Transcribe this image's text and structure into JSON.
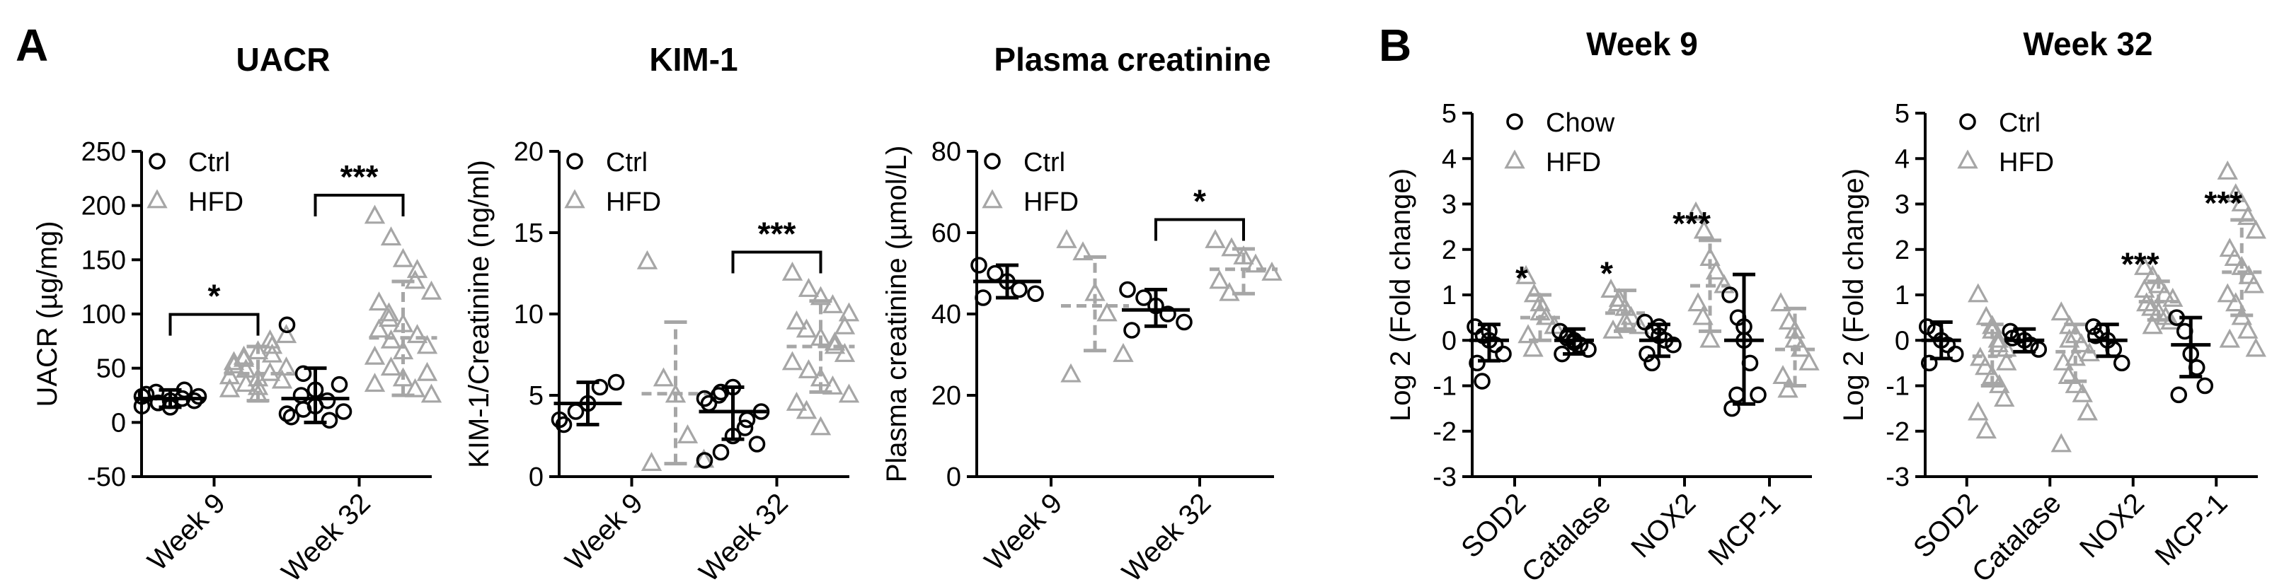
{
  "panel_labels": [
    "A",
    "B"
  ],
  "colors": {
    "ctrl": "#000000",
    "hfd": "#a6a6a6"
  },
  "chart_data": [
    {
      "type": "scatter",
      "title": "UACR",
      "ylabel": "UACR (µg/mg)",
      "ylim": [
        -50,
        250
      ],
      "yticks": [
        "-50",
        "0",
        "50",
        "100",
        "150",
        "200",
        "250"
      ],
      "categories": [
        "Week 9",
        "Week 32"
      ],
      "legend": {
        "position": "top-left",
        "entries": [
          "Ctrl",
          "HFD"
        ]
      },
      "series": [
        {
          "name": "Ctrl",
          "marker": "circle",
          "color": "#000000",
          "groups": [
            {
              "category": "Week 9",
              "mean": 22,
              "sd_low": 14,
              "sd_high": 30,
              "points": [
                15,
                18,
                20,
                22,
                24,
                26,
                28,
                14,
                30,
                20,
                24,
                18
              ]
            },
            {
              "category": "Week 32",
              "mean": 22,
              "sd_low": 0,
              "sd_high": 50,
              "points": [
                90,
                45,
                30,
                20,
                10,
                5,
                25,
                15,
                2,
                35,
                8,
                12
              ]
            }
          ]
        },
        {
          "name": "HFD",
          "marker": "triangle",
          "color": "#a6a6a6",
          "groups": [
            {
              "category": "Week 9",
              "mean": 45,
              "sd_low": 20,
              "sd_high": 70,
              "points": [
                30,
                35,
                40,
                45,
                50,
                55,
                60,
                65,
                70,
                38,
                42,
                48,
                25,
                75,
                80,
                52,
                58,
                32,
                62
              ]
            },
            {
              "category": "Week 32",
              "mean": 78,
              "sd_low": 25,
              "sd_high": 130,
              "points": [
                190,
                170,
                150,
                130,
                120,
                110,
                100,
                90,
                80,
                70,
                60,
                50,
                40,
                30,
                25,
                85,
                95,
                65,
                140,
                45,
                35,
                75
              ]
            }
          ]
        }
      ],
      "annotations": [
        {
          "text": "*",
          "category": "Week 9"
        },
        {
          "text": "***",
          "category": "Week 32"
        }
      ]
    },
    {
      "type": "scatter",
      "title": "KIM-1",
      "ylabel": "KIM-1/Creatinine (ng/ml)",
      "ylim": [
        0,
        20
      ],
      "yticks": [
        "0",
        "5",
        "10",
        "15",
        "20"
      ],
      "categories": [
        "Week 9",
        "Week 32"
      ],
      "legend": {
        "position": "top-left",
        "entries": [
          "Ctrl",
          "HFD"
        ]
      },
      "series": [
        {
          "name": "Ctrl",
          "marker": "circle",
          "color": "#000000",
          "groups": [
            {
              "category": "Week 9",
              "mean": 4.5,
              "sd_low": 3.2,
              "sd_high": 5.8,
              "points": [
                3.5,
                4.0,
                4.5,
                5.5,
                5.8,
                3.2
              ]
            },
            {
              "category": "Week 32",
              "mean": 4.0,
              "sd_low": 2.3,
              "sd_high": 5.5,
              "points": [
                1.0,
                1.5,
                2.5,
                3.0,
                4.0,
                4.5,
                5.0,
                5.5,
                3.5,
                2.0,
                4.8,
                5.2
              ]
            }
          ]
        },
        {
          "name": "HFD",
          "marker": "triangle",
          "color": "#a6a6a6",
          "groups": [
            {
              "category": "Week 9",
              "mean": 5.1,
              "sd_low": 0.8,
              "sd_high": 9.5,
              "points": [
                13.2,
                6.0,
                5.0,
                2.5,
                1.0,
                0.8
              ]
            },
            {
              "category": "Week 32",
              "mean": 8.0,
              "sd_low": 5.2,
              "sd_high": 10.8,
              "points": [
                12.5,
                11.5,
                11.0,
                10.5,
                10.0,
                9.5,
                9.0,
                8.5,
                8.0,
                7.5,
                7.0,
                6.5,
                6.0,
                5.5,
                5.0,
                4.5,
                4.0,
                3.0,
                8.2,
                9.2
              ]
            }
          ]
        }
      ],
      "annotations": [
        {
          "text": "***",
          "category": "Week 32"
        }
      ]
    },
    {
      "type": "scatter",
      "title": "Plasma creatinine",
      "ylabel": "Plasma creatinine (µmol/L)",
      "ylim": [
        0,
        80
      ],
      "yticks": [
        "0",
        "20",
        "40",
        "60",
        "80"
      ],
      "categories": [
        "Week 9",
        "Week 32"
      ],
      "legend": {
        "position": "top-left",
        "entries": [
          "Ctrl",
          "HFD"
        ]
      },
      "series": [
        {
          "name": "Ctrl",
          "marker": "circle",
          "color": "#000000",
          "groups": [
            {
              "category": "Week 9",
              "mean": 48,
              "sd_low": 44,
              "sd_high": 52,
              "points": [
                52,
                50,
                48,
                46,
                45,
                44
              ]
            },
            {
              "category": "Week 32",
              "mean": 41,
              "sd_low": 37,
              "sd_high": 46,
              "points": [
                46,
                44,
                42,
                40,
                38,
                36
              ]
            }
          ]
        },
        {
          "name": "HFD",
          "marker": "triangle",
          "color": "#a6a6a6",
          "groups": [
            {
              "category": "Week 9",
              "mean": 42,
              "sd_low": 31,
              "sd_high": 54,
              "points": [
                58,
                55,
                45,
                40,
                30,
                25
              ]
            },
            {
              "category": "Week 32",
              "mean": 51,
              "sd_low": 45,
              "sd_high": 56,
              "points": [
                58,
                56,
                54,
                52,
                50,
                48,
                45
              ]
            }
          ]
        }
      ],
      "annotations": [
        {
          "text": "*",
          "category": "Week 32"
        }
      ]
    },
    {
      "type": "scatter",
      "title": "Week 9",
      "ylabel": "Log 2 (Fold change)",
      "ylim": [
        -3,
        5
      ],
      "yticks": [
        "-3",
        "-2",
        "-1",
        "0",
        "1",
        "2",
        "3",
        "4",
        "5"
      ],
      "categories": [
        "SOD2",
        "Catalase",
        "NOX2",
        "MCP-1"
      ],
      "legend": {
        "position": "top-left",
        "entries": [
          "Chow",
          "HFD"
        ]
      },
      "series": [
        {
          "name": "Chow",
          "marker": "circle",
          "color": "#000000",
          "groups": [
            {
              "category": "SOD2",
              "mean": 0.0,
              "sd_low": -0.45,
              "sd_high": 0.35,
              "points": [
                0.3,
                0.1,
                0.0,
                -0.1,
                -0.3,
                -0.5,
                -0.9,
                0.2
              ]
            },
            {
              "category": "Catalase",
              "mean": 0.0,
              "sd_low": -0.3,
              "sd_high": 0.25,
              "points": [
                0.2,
                0.1,
                0.0,
                -0.1,
                -0.2,
                -0.3,
                0.05,
                -0.05
              ]
            },
            {
              "category": "NOX2",
              "mean": 0.0,
              "sd_low": -0.35,
              "sd_high": 0.35,
              "points": [
                0.4,
                0.2,
                0.1,
                0.0,
                -0.1,
                -0.3,
                -0.5,
                0.3
              ]
            },
            {
              "category": "MCP-1",
              "mean": 0.0,
              "sd_low": -1.4,
              "sd_high": 1.45,
              "points": [
                1.0,
                0.5,
                0.0,
                -0.5,
                -1.2,
                -1.5,
                -1.2,
                0.3
              ]
            }
          ]
        },
        {
          "name": "HFD",
          "marker": "triangle",
          "color": "#a6a6a6",
          "groups": [
            {
              "category": "SOD2",
              "mean": 0.5,
              "sd_low": 0.0,
              "sd_high": 1.0,
              "points": [
                1.4,
                1.0,
                0.8,
                0.5,
                0.3,
                0.1,
                -0.2,
                0.6
              ]
            },
            {
              "category": "Catalase",
              "mean": 0.6,
              "sd_low": 0.2,
              "sd_high": 1.1,
              "points": [
                1.1,
                0.9,
                0.7,
                0.5,
                0.3,
                0.2,
                0.8,
                0.4
              ]
            },
            {
              "category": "NOX2",
              "mean": 1.2,
              "sd_low": 0.2,
              "sd_high": 2.2,
              "points": [
                2.8,
                2.4,
                1.8,
                1.5,
                1.2,
                0.8,
                0.5,
                0.0
              ]
            },
            {
              "category": "MCP-1",
              "mean": -0.2,
              "sd_low": -1.0,
              "sd_high": 0.7,
              "points": [
                0.8,
                0.4,
                0.0,
                -0.2,
                -0.5,
                -0.8,
                -1.1,
                0.2
              ]
            }
          ]
        }
      ],
      "annotations": [
        {
          "text": "*",
          "category": "SOD2"
        },
        {
          "text": "*",
          "category": "Catalase"
        },
        {
          "text": "***",
          "category": "NOX2"
        }
      ]
    },
    {
      "type": "scatter",
      "title": "Week 32",
      "ylabel": "Log 2 (Fold change)",
      "ylim": [
        -3,
        5
      ],
      "yticks": [
        "-3",
        "-2",
        "-1",
        "0",
        "1",
        "2",
        "3",
        "4",
        "5"
      ],
      "categories": [
        "SOD2",
        "Catalase",
        "NOX2",
        "MCP-1"
      ],
      "legend": {
        "position": "top-left",
        "entries": [
          "Ctrl",
          "HFD"
        ]
      },
      "series": [
        {
          "name": "Ctrl",
          "marker": "circle",
          "color": "#000000",
          "groups": [
            {
              "category": "SOD2",
              "mean": 0.0,
              "sd_low": -0.4,
              "sd_high": 0.4,
              "points": [
                0.3,
                0.2,
                0.0,
                -0.1,
                -0.3,
                -0.5
              ]
            },
            {
              "category": "Catalase",
              "mean": 0.0,
              "sd_low": -0.25,
              "sd_high": 0.25,
              "points": [
                0.2,
                0.1,
                0.0,
                -0.1,
                -0.2,
                0.05
              ]
            },
            {
              "category": "NOX2",
              "mean": 0.0,
              "sd_low": -0.35,
              "sd_high": 0.35,
              "points": [
                0.3,
                0.2,
                0.0,
                -0.2,
                -0.5,
                0.1
              ]
            },
            {
              "category": "MCP-1",
              "mean": -0.1,
              "sd_low": -0.8,
              "sd_high": 0.5,
              "points": [
                0.5,
                0.2,
                -0.3,
                -0.6,
                -1.0,
                -1.2
              ]
            }
          ]
        },
        {
          "name": "HFD",
          "marker": "triangle",
          "color": "#a6a6a6",
          "groups": [
            {
              "category": "SOD2",
              "mean": -0.35,
              "sd_low": -1.0,
              "sd_high": 0.35,
              "points": [
                1.0,
                0.5,
                0.2,
                0.0,
                -0.2,
                -0.4,
                -0.6,
                -0.8,
                -1.0,
                -1.3,
                -1.6,
                -2.0,
                0.3,
                -0.1,
                -0.5
              ]
            },
            {
              "category": "Catalase",
              "mean": -0.25,
              "sd_low": -0.9,
              "sd_high": 0.35,
              "points": [
                0.6,
                0.3,
                0.1,
                -0.1,
                -0.3,
                -0.5,
                -0.8,
                -1.0,
                -1.2,
                -1.6,
                -2.3,
                0.0,
                -0.4
              ]
            },
            {
              "category": "NOX2",
              "mean": 0.85,
              "sd_low": 0.45,
              "sd_high": 1.3,
              "points": [
                1.6,
                1.4,
                1.2,
                1.0,
                0.9,
                0.8,
                0.7,
                0.6,
                0.5,
                0.4,
                1.1,
                0.3
              ]
            },
            {
              "category": "MCP-1",
              "mean": 1.5,
              "sd_low": 0.55,
              "sd_high": 2.65,
              "points": [
                3.7,
                3.2,
                3.0,
                2.7,
                2.4,
                2.0,
                1.8,
                1.6,
                1.4,
                1.2,
                1.0,
                0.8,
                0.5,
                0.2,
                -0.2,
                0.0
              ]
            }
          ]
        }
      ],
      "annotations": [
        {
          "text": "***",
          "category": "NOX2"
        },
        {
          "text": "***",
          "category": "MCP-1"
        }
      ]
    }
  ]
}
